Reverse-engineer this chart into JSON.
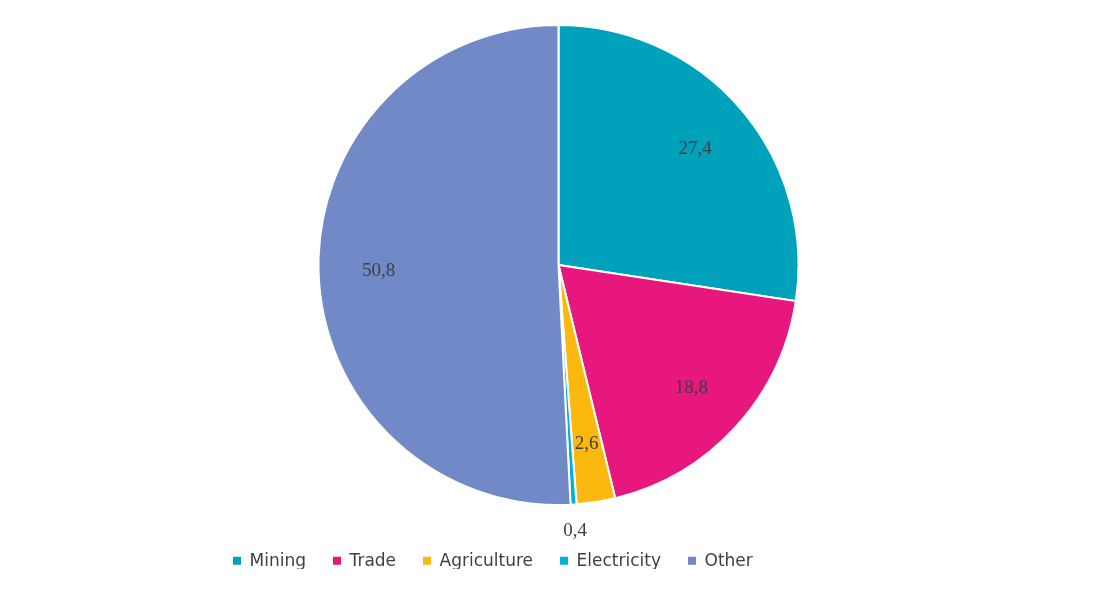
{
  "chart_data": {
    "type": "pie",
    "categories": [
      "Mining",
      "Trade",
      "Agriculture",
      "Electricity",
      "Other"
    ],
    "values": [
      27.4,
      18.8,
      2.6,
      0.4,
      50.8
    ],
    "value_labels": [
      "27,4",
      "18,8",
      "2,6",
      "0,4",
      "50,8"
    ],
    "colors": [
      "#00a2bb",
      "#e8177e",
      "#fbb80f",
      "#00b0d8",
      "#7289c8"
    ],
    "legend": "bottom"
  }
}
